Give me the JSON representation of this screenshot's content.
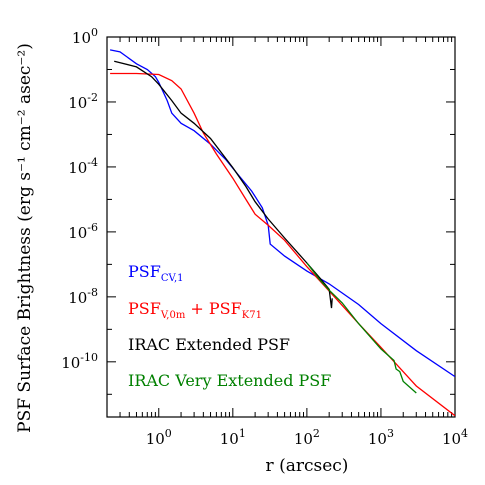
{
  "chart_data": {
    "type": "line",
    "xlabel": "r (arcsec)",
    "ylabel": "PSF Surface Brightness (erg s⁻¹ cm⁻² asec⁻²)",
    "xscale": "log",
    "yscale": "log",
    "xlim": [
      0.2,
      10000
    ],
    "ylim": [
      2e-12,
      1
    ],
    "xticks": [
      {
        "value": 1,
        "base": "10",
        "exp": "0"
      },
      {
        "value": 10,
        "base": "10",
        "exp": "1"
      },
      {
        "value": 100,
        "base": "10",
        "exp": "2"
      },
      {
        "value": 1000,
        "base": "10",
        "exp": "3"
      },
      {
        "value": 10000,
        "base": "10",
        "exp": "4"
      }
    ],
    "yticks": [
      {
        "value": 1e-10,
        "base": "10",
        "exp": "-10"
      },
      {
        "value": 1e-08,
        "base": "10",
        "exp": "-8"
      },
      {
        "value": 1e-06,
        "base": "10",
        "exp": "-6"
      },
      {
        "value": 0.0001,
        "base": "10",
        "exp": "-4"
      },
      {
        "value": 0.01,
        "base": "10",
        "exp": "-2"
      },
      {
        "value": 1,
        "base": "10",
        "exp": "0"
      }
    ],
    "legend_position": "bottom-left",
    "series": [
      {
        "name": "PSF_CV,1",
        "color": "#0000ff",
        "points": [
          [
            0.22,
            0.4
          ],
          [
            0.3,
            0.35
          ],
          [
            0.5,
            0.15
          ],
          [
            0.7,
            0.1
          ],
          [
            0.9,
            0.06
          ],
          [
            1.0,
            0.04
          ],
          [
            1.3,
            0.011
          ],
          [
            1.5,
            0.0045
          ],
          [
            2,
            0.0022
          ],
          [
            3,
            0.0013
          ],
          [
            5,
            0.0005
          ],
          [
            8,
            0.00017
          ],
          [
            12,
            5.5e-05
          ],
          [
            18,
            1.8e-05
          ],
          [
            25,
            5.5e-06
          ],
          [
            30,
            1.6e-06
          ],
          [
            32,
            4.2e-07
          ],
          [
            50,
            1.8e-07
          ],
          [
            100,
            6.2e-08
          ],
          [
            200,
            2.5e-08
          ],
          [
            500,
            5.8e-09
          ],
          [
            1000,
            1.5e-09
          ],
          [
            3000,
            2.2e-10
          ],
          [
            10000,
            3.5e-11
          ]
        ]
      },
      {
        "name": "PSF_V,0m + PSF_K71",
        "color": "#ff0000",
        "points": [
          [
            0.22,
            0.075
          ],
          [
            0.5,
            0.075
          ],
          [
            1,
            0.07
          ],
          [
            1.5,
            0.045
          ],
          [
            2,
            0.025
          ],
          [
            3,
            0.0045
          ],
          [
            4,
            0.0011
          ],
          [
            6,
            0.00025
          ],
          [
            10,
            4.5e-05
          ],
          [
            15,
            1e-05
          ],
          [
            20,
            3.5e-06
          ],
          [
            30,
            1.6e-06
          ],
          [
            50,
            5.5e-07
          ],
          [
            100,
            8.5e-08
          ],
          [
            200,
            1.5e-08
          ],
          [
            500,
            1.5e-09
          ],
          [
            1000,
            2.8e-10
          ],
          [
            3000,
            1.8e-11
          ],
          [
            10000,
            2.2e-12
          ]
        ]
      },
      {
        "name": "IRAC Extended PSF",
        "color": "#000000",
        "points": [
          [
            0.25,
            0.18
          ],
          [
            0.5,
            0.12
          ],
          [
            0.8,
            0.06
          ],
          [
            1,
            0.035
          ],
          [
            1.5,
            0.011
          ],
          [
            2,
            0.0045
          ],
          [
            3,
            0.0022
          ],
          [
            5,
            0.00075
          ],
          [
            10,
            9.5e-05
          ],
          [
            15,
            2.5e-05
          ],
          [
            20,
            8.5e-06
          ],
          [
            30,
            2.5e-06
          ],
          [
            50,
            6.5e-07
          ],
          [
            100,
            1.1e-07
          ],
          [
            150,
            3.8e-08
          ],
          [
            200,
            1.7e-08
          ],
          [
            215,
            4.5e-09
          ],
          [
            220,
            9e-09
          ]
        ]
      },
      {
        "name": "IRAC Very Extended PSF",
        "color": "#008000",
        "points": [
          [
            100,
            1.1e-07
          ],
          [
            150,
            3.3e-08
          ],
          [
            200,
            1.6e-08
          ],
          [
            300,
            6.5e-09
          ],
          [
            500,
            1.5e-09
          ],
          [
            1000,
            2.5e-10
          ],
          [
            1500,
            1.1e-10
          ],
          [
            1600,
            6e-11
          ],
          [
            1800,
            5e-11
          ],
          [
            2000,
            2.5e-11
          ],
          [
            3000,
            1.1e-11
          ]
        ]
      }
    ]
  },
  "legend": [
    {
      "base": "PSF",
      "sub": "CV,1",
      "mid": "",
      "base2": "",
      "sub2": "",
      "color": "#0000ff"
    },
    {
      "base": "PSF",
      "sub": "V,0m",
      "mid": " + PSF",
      "base2": "",
      "sub2": "K71",
      "color": "#ff0000"
    },
    {
      "base": "IRAC Extended PSF",
      "sub": "",
      "mid": "",
      "base2": "",
      "sub2": "",
      "color": "#000000"
    },
    {
      "base": "IRAC Very Extended PSF",
      "sub": "",
      "mid": "",
      "base2": "",
      "sub2": "",
      "color": "#008000"
    }
  ]
}
